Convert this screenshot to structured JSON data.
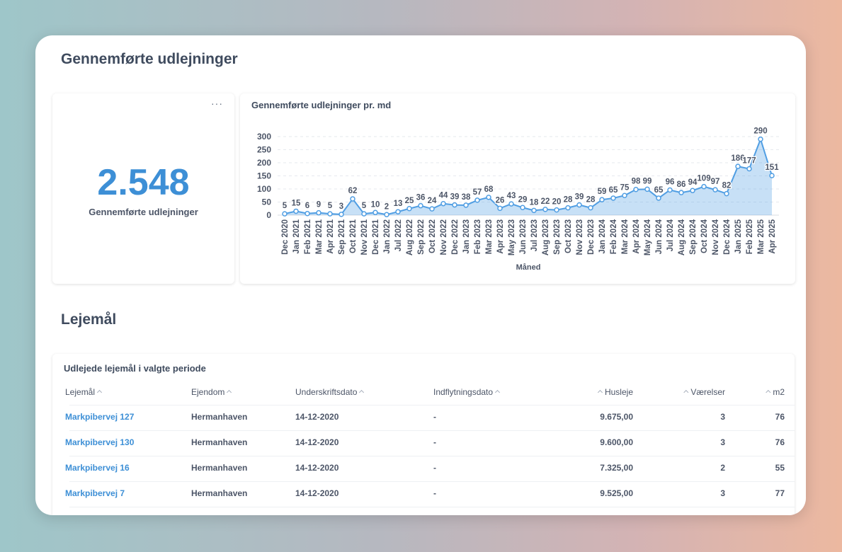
{
  "header": {
    "title": "Gennemførte udlejninger"
  },
  "kpi": {
    "value": "2.548",
    "label": "Gennemførte udlejninger"
  },
  "chart_data": {
    "type": "area",
    "title": "Gennemførte udlejninger pr. md",
    "xlabel": "Måned",
    "color": "#509ee3",
    "categories": [
      "Dec 2020",
      "Jan 2021",
      "Feb 2021",
      "Mar 2021",
      "Apr 2021",
      "Sep 2021",
      "Oct 2021",
      "Nov 2021",
      "Dec 2021",
      "Jan 2022",
      "Jul 2022",
      "Aug 2022",
      "Sep 2022",
      "Oct 2022",
      "Nov 2022",
      "Dec 2022",
      "Jan 2023",
      "Feb 2023",
      "Mar 2023",
      "Apr 2023",
      "May 2023",
      "Jun 2023",
      "Jul 2023",
      "Aug 2023",
      "Sep 2023",
      "Oct 2023",
      "Nov 2023",
      "Dec 2023",
      "Jan 2024",
      "Feb 2024",
      "Mar 2024",
      "Apr 2024",
      "May 2024",
      "Jun 2024",
      "Jul 2024",
      "Aug 2024",
      "Sep 2024",
      "Oct 2024",
      "Nov 2024",
      "Dec 2024",
      "Jan 2025",
      "Feb 2025",
      "Mar 2025",
      "Apr 2025"
    ],
    "values": [
      5,
      15,
      6,
      9,
      5,
      3,
      62,
      5,
      10,
      2,
      13,
      25,
      36,
      24,
      44,
      39,
      38,
      57,
      68,
      26,
      43,
      29,
      18,
      22,
      20,
      28,
      39,
      28,
      59,
      65,
      75,
      98,
      99,
      65,
      96,
      86,
      94,
      109,
      97,
      82,
      186,
      177,
      290,
      151
    ],
    "ylim": [
      0,
      300
    ],
    "yticks": [
      0,
      50,
      100,
      150,
      200,
      250,
      300
    ],
    "grid": true
  },
  "section": {
    "title": "Lejemål"
  },
  "table": {
    "title": "Udlejede lejemål i valgte periode",
    "columns": [
      "Lejemål",
      "Ejendom",
      "Underskriftsdato",
      "Indflytningsdato",
      "Husleje",
      "Værelser",
      "m2"
    ],
    "rows": [
      [
        "Markpibervej 127",
        "Hermanhaven",
        "14-12-2020",
        "-",
        "9.675,00",
        "3",
        "76"
      ],
      [
        "Markpibervej 130",
        "Hermanhaven",
        "14-12-2020",
        "-",
        "9.600,00",
        "3",
        "76"
      ],
      [
        "Markpibervej 16",
        "Hermanhaven",
        "14-12-2020",
        "-",
        "7.325,00",
        "2",
        "55"
      ],
      [
        "Markpibervej 7",
        "Hermanhaven",
        "14-12-2020",
        "-",
        "9.525,00",
        "3",
        "77"
      ]
    ]
  }
}
